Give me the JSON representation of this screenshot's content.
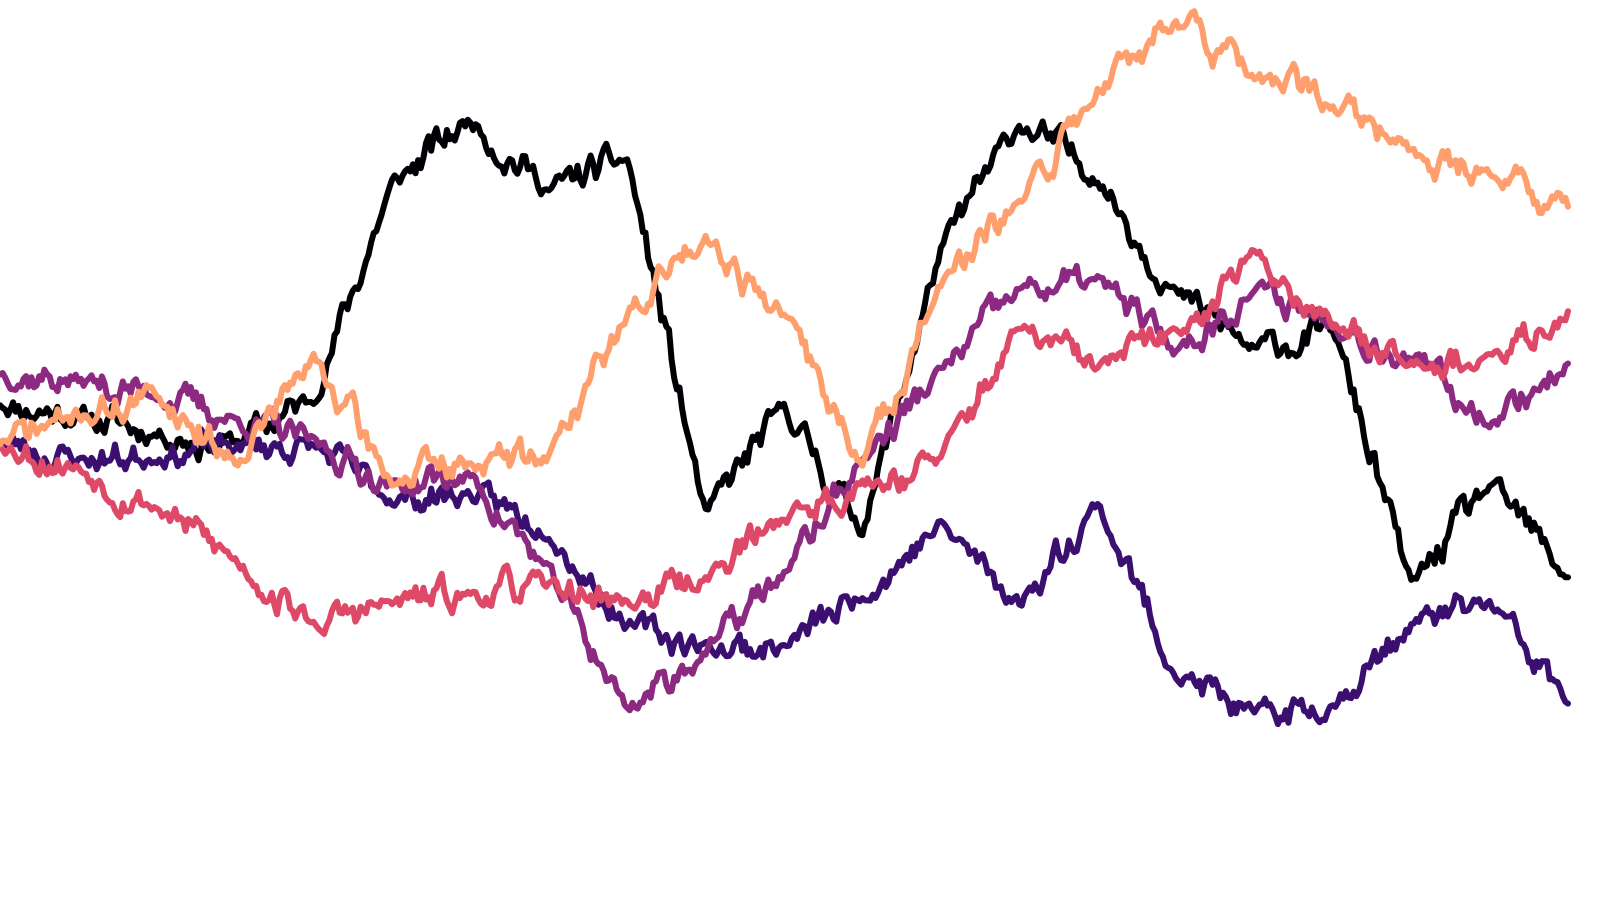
{
  "chart_data": {
    "type": "line",
    "title": "",
    "xlabel": "",
    "ylabel": "",
    "xlim": [
      0,
      100
    ],
    "ylim": [
      -100,
      100
    ],
    "grid": false,
    "axes_visible": false,
    "legend": "none",
    "x": [
      0,
      5,
      10,
      15,
      20,
      25,
      30,
      35,
      40,
      45,
      50,
      55,
      60,
      65,
      70,
      75,
      80,
      85,
      90,
      95,
      100
    ],
    "series": [
      {
        "color": "#000004",
        "values": [
          9,
          6,
          2,
          0,
          10,
          59,
          74,
          58,
          65,
          -17,
          8,
          -20,
          44,
          73,
          61,
          34,
          21,
          26,
          -33,
          -10,
          -31
        ],
        "noise_amp": 3.2,
        "seed": 11
      },
      {
        "color": "#3b0f70",
        "values": [
          0,
          -4,
          -3,
          -1,
          -1,
          -13,
          -12,
          -20,
          -42,
          -47,
          -47,
          -35,
          -19,
          -37,
          -14,
          -53,
          -63,
          -60,
          -42,
          -37,
          -60
        ],
        "noise_amp": 3.0,
        "seed": 23
      },
      {
        "color": "#8c2981",
        "values": [
          16,
          14,
          11,
          5,
          0,
          -10,
          -8,
          -30,
          -61,
          -48,
          -30,
          -4,
          16,
          35,
          37,
          21,
          35,
          28,
          19,
          5,
          18
        ],
        "noise_amp": 3.0,
        "seed": 37
      },
      {
        "color": "#de4968",
        "values": [
          0,
          -6,
          -15,
          -27,
          -42,
          -37,
          -35,
          -33,
          -37,
          -31,
          -17,
          -10,
          -4,
          26,
          17,
          25,
          43,
          27,
          20,
          18,
          30
        ],
        "noise_amp": 3.0,
        "seed": 53
      },
      {
        "color": "#fe9f6d",
        "values": [
          0,
          6,
          11,
          -4,
          19,
          -9,
          -5,
          -3,
          29,
          48,
          29,
          -5,
          36,
          54,
          81,
          98,
          83,
          78,
          66,
          62,
          54
        ],
        "noise_amp": 3.2,
        "seed": 71
      }
    ]
  }
}
